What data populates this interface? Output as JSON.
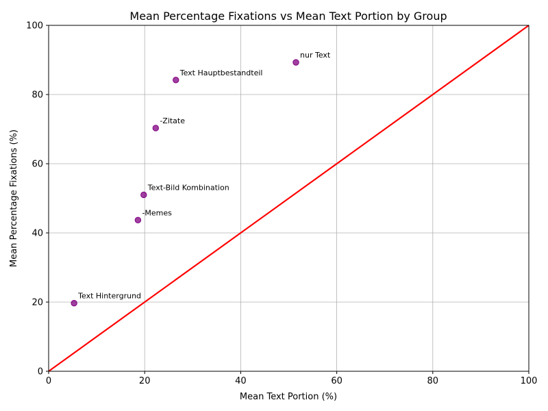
{
  "chart_data": {
    "type": "scatter",
    "title": "Mean Percentage Fixations vs Mean Text Portion by Group",
    "xlabel": "Mean Text Portion (%)",
    "ylabel": "Mean Percentage Fixations (%)",
    "xlim": [
      0,
      100
    ],
    "ylim": [
      0,
      100
    ],
    "xticks": [
      0,
      20,
      40,
      60,
      80,
      100
    ],
    "yticks": [
      0,
      20,
      40,
      60,
      80,
      100
    ],
    "grid": true,
    "point_color": "#800080",
    "reference_line": {
      "x": [
        0,
        100
      ],
      "y": [
        0,
        100
      ],
      "color": "#ff0000"
    },
    "points": [
      {
        "label": "nur Text",
        "x": 51.5,
        "y": 89.3
      },
      {
        "label": "Text Hauptbestandteil",
        "x": 26.5,
        "y": 84.2
      },
      {
        "label": "-Zitate",
        "x": 22.3,
        "y": 70.3
      },
      {
        "label": "Text-Bild Kombination",
        "x": 19.8,
        "y": 51.0
      },
      {
        "label": "-Memes",
        "x": 18.6,
        "y": 43.7
      },
      {
        "label": "Text Hintergrund",
        "x": 5.3,
        "y": 19.7
      }
    ]
  }
}
